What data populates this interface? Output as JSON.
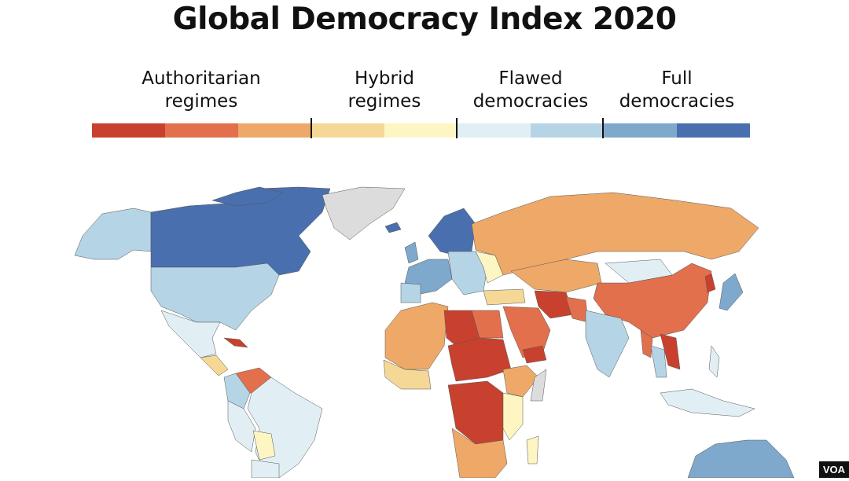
{
  "title": "Global Democracy Index 2020",
  "legend": {
    "groups": [
      {
        "label_line1": "Authoritarian",
        "label_line2": "regimes"
      },
      {
        "label_line1": "Hybrid",
        "label_line2": "regimes"
      },
      {
        "label_line1": "Flawed",
        "label_line2": "democracies"
      },
      {
        "label_line1": "Full",
        "label_line2": "democracies"
      }
    ],
    "colors": [
      "#c8412f",
      "#e2704d",
      "#eea868",
      "#f5d896",
      "#fdf6c2",
      "#e1eff5",
      "#b5d5e6",
      "#7ea8cc",
      "#4a6fae"
    ],
    "no_data_color": "#dcdcdc"
  },
  "badge": "VOA"
}
